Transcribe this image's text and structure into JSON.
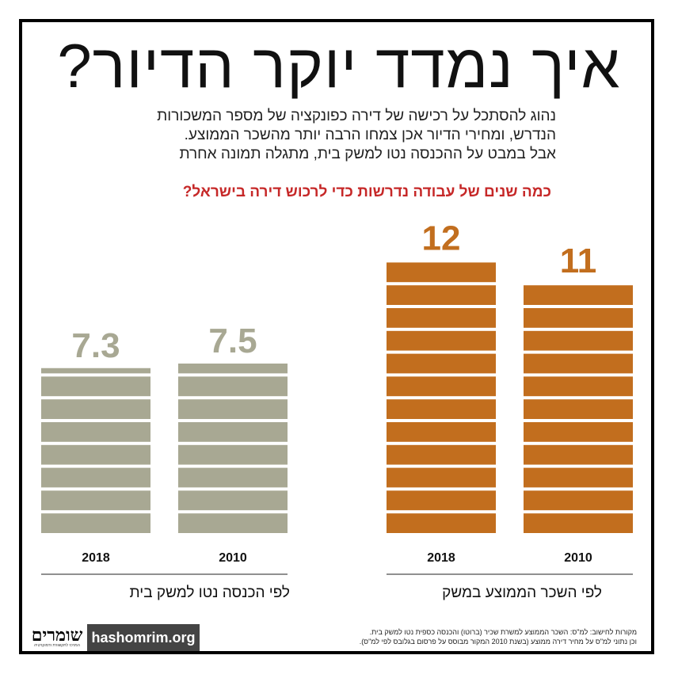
{
  "title": "איך נמדד יוקר הדיור?",
  "intro": [
    "נהוג להסתכל על רכישה של דירה כפונקציה של מספר המשכורות",
    "הנדרש, ומחירי הדיור אכן צמחו הרבה יותר מהשכר הממוצע.",
    "אבל במבט על ההכנסה נטו למשק בית, מתגלה תמונה אחרת"
  ],
  "question": "כמה שנים של עבודה נדרשות כדי לרכוש דירה בישראל?",
  "colors": {
    "salary": "#c26e1e",
    "income": "#a8a893",
    "question": "#c62828"
  },
  "chart_data": {
    "type": "bar",
    "charts": [
      {
        "caption": "לפי הכנסה נטו למשק בית",
        "categories": [
          "2018",
          "2010"
        ],
        "values": [
          7.3,
          7.5
        ],
        "labels": [
          "7.3",
          "7.5"
        ],
        "color": "#a8a893"
      },
      {
        "caption": "לפי השכר הממוצע במשק",
        "categories": [
          "2018",
          "2010"
        ],
        "values": [
          12,
          11
        ],
        "labels": [
          "12",
          "11"
        ],
        "color": "#c26e1e"
      }
    ]
  },
  "footer": {
    "logo_text": "שומרים",
    "logo_sub": "המרכז לתקשורת ודמוקרטיה",
    "url": "hashomrim.org",
    "sources": [
      "מקורות לחישוב: למ\"ס: השכר הממוצע למשרת שכיר (ברוטו) והכנסה כספית נטו למשק בית.",
      "וכן נתוני למ\"ס על מחיר דירה ממוצע (בשנת 2010 המקור מבוסס על פרסום בגלובס לפי למ\"ס)."
    ]
  }
}
